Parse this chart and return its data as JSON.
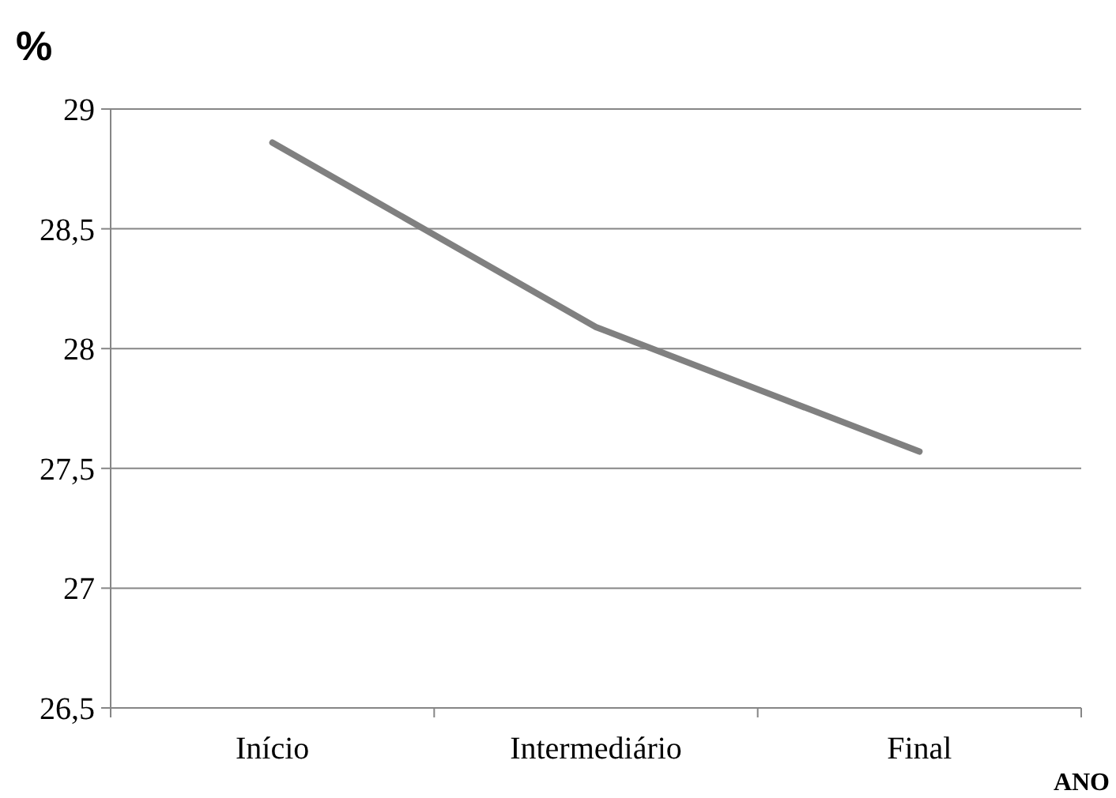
{
  "chart_data": {
    "type": "line",
    "ylabel": "%",
    "xlabel": "ANO",
    "categories": [
      "Início",
      "Intermediário",
      "Final"
    ],
    "series": [
      {
        "color": "#808080",
        "values": [
          28.86,
          28.09,
          27.57
        ]
      }
    ],
    "ylim": [
      26.5,
      29
    ],
    "yticks": [
      {
        "value": 26.5,
        "label": "26,5"
      },
      27,
      {
        "value": 27.5,
        "label": "27,5"
      },
      28,
      {
        "value": 28.5,
        "label": "28,5"
      },
      29
    ],
    "grid": "y",
    "marker": "none",
    "line_style": "solid"
  }
}
